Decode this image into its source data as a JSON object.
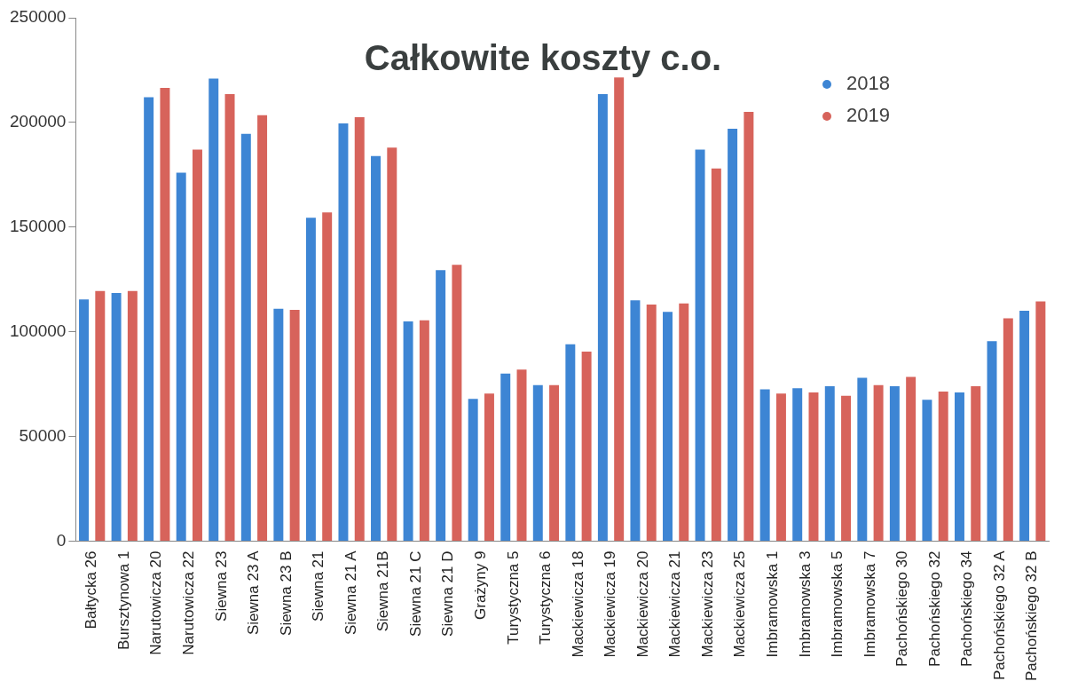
{
  "chart_data": {
    "type": "bar",
    "title": "Całkowite koszty c.o.",
    "categories": [
      "Bałtycka 26",
      "Bursztynowa 1",
      "Narutowicza 20",
      "Narutowicza 22",
      "Siewna 23",
      "Siewna 23 A",
      "Siewna 23 B",
      "Siewna 21",
      "Siewna 21 A",
      "Siewna 21B",
      "Siewna 21 C",
      "Siewna 21 D",
      "Grażyny 9",
      "Turystyczna 5",
      "Turystyczna 6",
      "Mackiewicza 18",
      "Mackiewicza 19",
      "Mackiewicza 20",
      "Mackiewicza 21",
      "Mackiewicza 23",
      "Mackiewicza 25",
      "Imbramowska 1",
      "Imbramowska 3",
      "Imbramowska 5",
      "Imbramowska 7",
      "Pachońskiego 30",
      "Pachońskiego 32",
      "Pachońskiego 34",
      "Pachońskiego 32 A",
      "Pachońskiego 32 B"
    ],
    "series": [
      {
        "name": "2018",
        "color": "#3d85d4",
        "values": [
          115500,
          118500,
          212000,
          176000,
          221000,
          194500,
          111000,
          154500,
          199500,
          184000,
          105000,
          129500,
          68000,
          80000,
          74500,
          94000,
          213500,
          115000,
          109500,
          187000,
          197000,
          72500,
          73000,
          74000,
          78000,
          74000,
          67500,
          71000,
          95500,
          110000
        ]
      },
      {
        "name": "2019",
        "color": "#d7635b",
        "values": [
          119500,
          119500,
          216500,
          187000,
          213500,
          203500,
          110500,
          157000,
          202500,
          188000,
          105500,
          132000,
          70500,
          82000,
          74500,
          90500,
          221500,
          113000,
          113500,
          178000,
          205000,
          70500,
          71000,
          69500,
          74500,
          78500,
          71500,
          74000,
          106500,
          114500
        ]
      }
    ],
    "ylim": [
      0,
      250000
    ],
    "yticks": [
      0,
      50000,
      100000,
      150000,
      200000,
      250000
    ],
    "grid": false,
    "legend": "top right",
    "marker": "circle"
  }
}
